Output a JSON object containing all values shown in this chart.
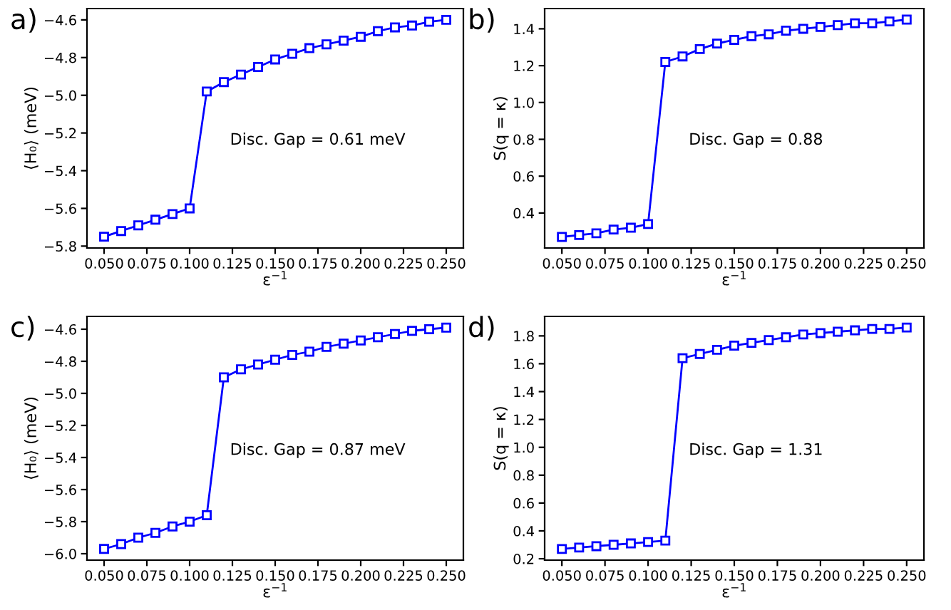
{
  "chart_data": [
    {
      "type": "line",
      "title": "a)",
      "xlabel": "ε$^{−1}$",
      "ylabel": "⟨H₀⟩ (meV)",
      "annotations": [
        "Disc. Gap = 0.61 meV"
      ],
      "x": [
        0.05,
        0.06,
        0.07,
        0.08,
        0.09,
        0.1,
        0.11,
        0.12,
        0.13,
        0.14,
        0.15,
        0.16,
        0.17,
        0.18,
        0.19,
        0.2,
        0.21,
        0.22,
        0.23,
        0.24,
        0.25
      ],
      "series": [
        {
          "color": "#0000ff",
          "values": [
            -5.75,
            -5.72,
            -5.69,
            -5.66,
            -5.63,
            -5.6,
            -4.98,
            -4.93,
            -4.89,
            -4.85,
            -4.81,
            -4.78,
            -4.75,
            -4.73,
            -4.71,
            -4.69,
            -4.66,
            -4.64,
            -4.63,
            -4.61,
            -4.6
          ]
        }
      ],
      "marker": "square",
      "line_style": "solid",
      "grid": false,
      "legend": false,
      "xlim": [
        0.04,
        0.26
      ],
      "ylim": [
        -5.81,
        -4.54
      ],
      "xticks": [
        {
          "value": 0.05,
          "label": "0.050"
        },
        {
          "value": 0.075,
          "label": "0.075"
        },
        {
          "value": 0.1,
          "label": "0.100"
        },
        {
          "value": 0.125,
          "label": "0.125"
        },
        {
          "value": 0.15,
          "label": "0.150"
        },
        {
          "value": 0.175,
          "label": "0.175"
        },
        {
          "value": 0.2,
          "label": "0.200"
        },
        {
          "value": 0.225,
          "label": "0.225"
        },
        {
          "value": 0.25,
          "label": "0.250"
        }
      ],
      "yticks": [
        {
          "value": -5.8,
          "label": "−5.8"
        },
        {
          "value": -5.6,
          "label": "−5.6"
        },
        {
          "value": -5.4,
          "label": "−5.4"
        },
        {
          "value": -5.2,
          "label": "−5.2"
        },
        {
          "value": -5.0,
          "label": "−5.0"
        },
        {
          "value": -4.8,
          "label": "−4.8"
        },
        {
          "value": -4.6,
          "label": "−4.6"
        }
      ]
    },
    {
      "type": "line",
      "title": "b)",
      "xlabel": "ε$^{−1}$",
      "ylabel": "S(q = κ)",
      "annotations": [
        "Disc. Gap = 0.88"
      ],
      "x": [
        0.05,
        0.06,
        0.07,
        0.08,
        0.09,
        0.1,
        0.11,
        0.12,
        0.13,
        0.14,
        0.15,
        0.16,
        0.17,
        0.18,
        0.19,
        0.2,
        0.21,
        0.22,
        0.23,
        0.24,
        0.25
      ],
      "series": [
        {
          "color": "#0000ff",
          "values": [
            0.27,
            0.28,
            0.29,
            0.31,
            0.32,
            0.34,
            1.22,
            1.25,
            1.29,
            1.32,
            1.34,
            1.36,
            1.37,
            1.39,
            1.4,
            1.41,
            1.42,
            1.43,
            1.43,
            1.44,
            1.45
          ]
        }
      ],
      "marker": "square",
      "line_style": "solid",
      "grid": false,
      "legend": false,
      "xlim": [
        0.04,
        0.26
      ],
      "ylim": [
        0.21,
        1.51
      ],
      "xticks": [
        {
          "value": 0.05,
          "label": "0.050"
        },
        {
          "value": 0.075,
          "label": "0.075"
        },
        {
          "value": 0.1,
          "label": "0.100"
        },
        {
          "value": 0.125,
          "label": "0.125"
        },
        {
          "value": 0.15,
          "label": "0.150"
        },
        {
          "value": 0.175,
          "label": "0.175"
        },
        {
          "value": 0.2,
          "label": "0.200"
        },
        {
          "value": 0.225,
          "label": "0.225"
        },
        {
          "value": 0.25,
          "label": "0.250"
        }
      ],
      "yticks": [
        0.4,
        0.6,
        0.8,
        {
          "value": 1.0,
          "label": "1.0"
        },
        1.2,
        1.4
      ]
    },
    {
      "type": "line",
      "title": "c)",
      "xlabel": "ε$^{−1}$",
      "ylabel": "⟨H₀⟩ (meV)",
      "annotations": [
        "Disc. Gap = 0.87 meV"
      ],
      "x": [
        0.05,
        0.06,
        0.07,
        0.08,
        0.09,
        0.1,
        0.11,
        0.12,
        0.13,
        0.14,
        0.15,
        0.16,
        0.17,
        0.18,
        0.19,
        0.2,
        0.21,
        0.22,
        0.23,
        0.24,
        0.25
      ],
      "series": [
        {
          "color": "#0000ff",
          "values": [
            -5.97,
            -5.94,
            -5.9,
            -5.87,
            -5.83,
            -5.8,
            -5.76,
            -4.9,
            -4.85,
            -4.82,
            -4.79,
            -4.76,
            -4.74,
            -4.71,
            -4.69,
            -4.67,
            -4.65,
            -4.63,
            -4.61,
            -4.6,
            -4.59
          ]
        }
      ],
      "marker": "square",
      "line_style": "solid",
      "grid": false,
      "legend": false,
      "xlim": [
        0.04,
        0.26
      ],
      "ylim": [
        -6.04,
        -4.52
      ],
      "xticks": [
        {
          "value": 0.05,
          "label": "0.050"
        },
        {
          "value": 0.075,
          "label": "0.075"
        },
        {
          "value": 0.1,
          "label": "0.100"
        },
        {
          "value": 0.125,
          "label": "0.125"
        },
        {
          "value": 0.15,
          "label": "0.150"
        },
        {
          "value": 0.175,
          "label": "0.175"
        },
        {
          "value": 0.2,
          "label": "0.200"
        },
        {
          "value": 0.225,
          "label": "0.225"
        },
        {
          "value": 0.25,
          "label": "0.250"
        }
      ],
      "yticks": [
        {
          "value": -6.0,
          "label": "−6.0"
        },
        {
          "value": -5.8,
          "label": "−5.8"
        },
        {
          "value": -5.6,
          "label": "−5.6"
        },
        {
          "value": -5.4,
          "label": "−5.4"
        },
        {
          "value": -5.2,
          "label": "−5.2"
        },
        {
          "value": -5.0,
          "label": "−5.0"
        },
        {
          "value": -4.8,
          "label": "−4.8"
        },
        {
          "value": -4.6,
          "label": "−4.6"
        }
      ]
    },
    {
      "type": "line",
      "title": "d)",
      "xlabel": "ε$^{−1}$",
      "ylabel": "S(q = κ)",
      "annotations": [
        "Disc. Gap = 1.31"
      ],
      "x": [
        0.05,
        0.06,
        0.07,
        0.08,
        0.09,
        0.1,
        0.11,
        0.12,
        0.13,
        0.14,
        0.15,
        0.16,
        0.17,
        0.18,
        0.19,
        0.2,
        0.21,
        0.22,
        0.23,
        0.24,
        0.25
      ],
      "series": [
        {
          "color": "#0000ff",
          "values": [
            0.27,
            0.28,
            0.29,
            0.3,
            0.31,
            0.32,
            0.33,
            1.64,
            1.67,
            1.7,
            1.73,
            1.75,
            1.77,
            1.79,
            1.81,
            1.82,
            1.83,
            1.84,
            1.85,
            1.85,
            1.86
          ]
        }
      ],
      "marker": "square",
      "line_style": "solid",
      "grid": false,
      "legend": false,
      "xlim": [
        0.04,
        0.26
      ],
      "ylim": [
        0.19,
        1.94
      ],
      "xticks": [
        {
          "value": 0.05,
          "label": "0.050"
        },
        {
          "value": 0.075,
          "label": "0.075"
        },
        {
          "value": 0.1,
          "label": "0.100"
        },
        {
          "value": 0.125,
          "label": "0.125"
        },
        {
          "value": 0.15,
          "label": "0.150"
        },
        {
          "value": 0.175,
          "label": "0.175"
        },
        {
          "value": 0.2,
          "label": "0.200"
        },
        {
          "value": 0.225,
          "label": "0.225"
        },
        {
          "value": 0.25,
          "label": "0.250"
        }
      ],
      "yticks": [
        0.2,
        0.4,
        0.6,
        0.8,
        {
          "value": 1.0,
          "label": "1.0"
        },
        1.2,
        1.4,
        1.6,
        1.8
      ]
    }
  ]
}
